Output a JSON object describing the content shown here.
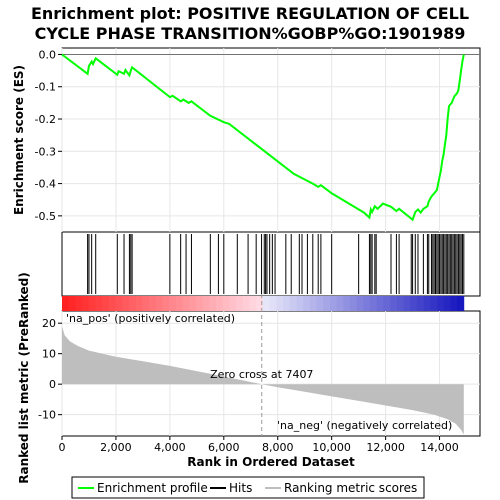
{
  "chart_data": {
    "type": "line",
    "title_lines": [
      "Enrichment plot: POSITIVE REGULATION OF CELL",
      "CYCLE PHASE TRANSITION%GOBP%GO:1901989"
    ],
    "es_panel": {
      "ylabel": "Enrichment score (ES)",
      "ylim": [
        -0.55,
        0.02
      ],
      "yticks": [
        0.0,
        -0.1,
        -0.2,
        -0.3,
        -0.4,
        -0.5
      ],
      "ytick_labels": [
        "0.0",
        "-0.1",
        "-0.2",
        "-0.3",
        "-0.4",
        "-0.5"
      ],
      "series_name": "Enrichment profile",
      "color": "#00ff00",
      "points": [
        [
          0,
          0.0
        ],
        [
          950,
          -0.06
        ],
        [
          1000,
          -0.035
        ],
        [
          1100,
          -0.022
        ],
        [
          1150,
          -0.03
        ],
        [
          1250,
          -0.012
        ],
        [
          2050,
          -0.063
        ],
        [
          2100,
          -0.052
        ],
        [
          2300,
          -0.06
        ],
        [
          2350,
          -0.048
        ],
        [
          2500,
          -0.065
        ],
        [
          2550,
          -0.05
        ],
        [
          2600,
          -0.04
        ],
        [
          4000,
          -0.132
        ],
        [
          4100,
          -0.128
        ],
        [
          4400,
          -0.145
        ],
        [
          4500,
          -0.14
        ],
        [
          4700,
          -0.15
        ],
        [
          4800,
          -0.145
        ],
        [
          5500,
          -0.19
        ],
        [
          6000,
          -0.21
        ],
        [
          6200,
          -0.215
        ],
        [
          8600,
          -0.37
        ],
        [
          9300,
          -0.4
        ],
        [
          9500,
          -0.41
        ],
        [
          9600,
          -0.405
        ],
        [
          10000,
          -0.43
        ],
        [
          10100,
          -0.435
        ],
        [
          11000,
          -0.48
        ],
        [
          11200,
          -0.49
        ],
        [
          11400,
          -0.505
        ],
        [
          11450,
          -0.48
        ],
        [
          11500,
          -0.488
        ],
        [
          11600,
          -0.47
        ],
        [
          11700,
          -0.478
        ],
        [
          11900,
          -0.462
        ],
        [
          12200,
          -0.472
        ],
        [
          12400,
          -0.485
        ],
        [
          12500,
          -0.478
        ],
        [
          12900,
          -0.505
        ],
        [
          13000,
          -0.512
        ],
        [
          13100,
          -0.488
        ],
        [
          13200,
          -0.48
        ],
        [
          13300,
          -0.49
        ],
        [
          13400,
          -0.478
        ],
        [
          13550,
          -0.47
        ],
        [
          13600,
          -0.455
        ],
        [
          13700,
          -0.44
        ],
        [
          13800,
          -0.43
        ],
        [
          13900,
          -0.42
        ],
        [
          13950,
          -0.4
        ],
        [
          14000,
          -0.38
        ],
        [
          14050,
          -0.36
        ],
        [
          14100,
          -0.33
        ],
        [
          14150,
          -0.31
        ],
        [
          14200,
          -0.28
        ],
        [
          14250,
          -0.25
        ],
        [
          14300,
          -0.2
        ],
        [
          14350,
          -0.16
        ],
        [
          14400,
          -0.155
        ],
        [
          14450,
          -0.15
        ],
        [
          14500,
          -0.14
        ],
        [
          14550,
          -0.13
        ],
        [
          14600,
          -0.125
        ],
        [
          14650,
          -0.12
        ],
        [
          14700,
          -0.11
        ],
        [
          14750,
          -0.08
        ],
        [
          14800,
          -0.05
        ],
        [
          14850,
          -0.02
        ],
        [
          14900,
          0.0
        ]
      ]
    },
    "hits_panel": {
      "positions": [
        950,
        1000,
        1100,
        1250,
        2050,
        2300,
        2500,
        2550,
        2600,
        4000,
        4400,
        4600,
        4800,
        5500,
        5800,
        6000,
        6500,
        6900,
        7200,
        7400,
        7500,
        7550,
        7600,
        7700,
        7800,
        7900,
        8300,
        8500,
        8800,
        8900,
        9100,
        9300,
        9500,
        9600,
        10000,
        11000,
        11400,
        11450,
        11500,
        11600,
        11650,
        12200,
        12400,
        12500,
        12950,
        13000,
        13100,
        13200,
        13400,
        13550,
        13600,
        13700,
        13750,
        13800,
        13850,
        13900,
        13950,
        14000,
        14050,
        14100,
        14150,
        14200,
        14250,
        14300,
        14350,
        14400,
        14450,
        14500,
        14550,
        14600,
        14650,
        14700,
        14750,
        14800,
        14850,
        14900
      ]
    },
    "ranked_panel": {
      "ylabel": "Ranked list metric (PreRanked)",
      "ylim": [
        -17,
        24
      ],
      "yticks": [
        20,
        10,
        0,
        -10
      ],
      "ytick_labels": [
        "20",
        "10",
        "0",
        "-10"
      ],
      "series_name": "Ranking metric scores",
      "color": "#bebebe",
      "points": [
        [
          0,
          19
        ],
        [
          100,
          16
        ],
        [
          300,
          14
        ],
        [
          600,
          12.5
        ],
        [
          1000,
          11
        ],
        [
          2000,
          9
        ],
        [
          3000,
          7.5
        ],
        [
          4000,
          6
        ],
        [
          5000,
          4.3
        ],
        [
          6000,
          2.5
        ],
        [
          6500,
          1.6
        ],
        [
          7407,
          0
        ],
        [
          8000,
          -1
        ],
        [
          9000,
          -2.5
        ],
        [
          10000,
          -4
        ],
        [
          11000,
          -5.5
        ],
        [
          12000,
          -7
        ],
        [
          13000,
          -8.5
        ],
        [
          13800,
          -10
        ],
        [
          14300,
          -11.5
        ],
        [
          14600,
          -13
        ],
        [
          14800,
          -15
        ],
        [
          14900,
          -16.5
        ]
      ],
      "zero_cross_label": "Zero cross at 7407",
      "zero_cross_rank": 7407,
      "pos_label": "'na_pos' (positively correlated)",
      "neg_label": "'na_neg' (negatively correlated)",
      "pos_color": "#ff0000",
      "neg_color": "#0000ff"
    },
    "x_axis": {
      "xlabel": "Rank in Ordered Dataset",
      "xlim": [
        0,
        15500
      ],
      "xticks": [
        0,
        2000,
        4000,
        6000,
        8000,
        10000,
        12000,
        14000
      ],
      "xtick_labels": [
        "0",
        "2,000",
        "4,000",
        "6,000",
        "8,000",
        "10,000",
        "12,000",
        "14,000"
      ],
      "n_ranks": 14900
    },
    "legend": {
      "placement": "bottom",
      "items": [
        {
          "label": "Enrichment profile",
          "color": "#00ff00"
        },
        {
          "label": "Hits",
          "color": "#000000"
        },
        {
          "label": "Ranking metric scores",
          "color": "#bebebe"
        }
      ]
    }
  }
}
